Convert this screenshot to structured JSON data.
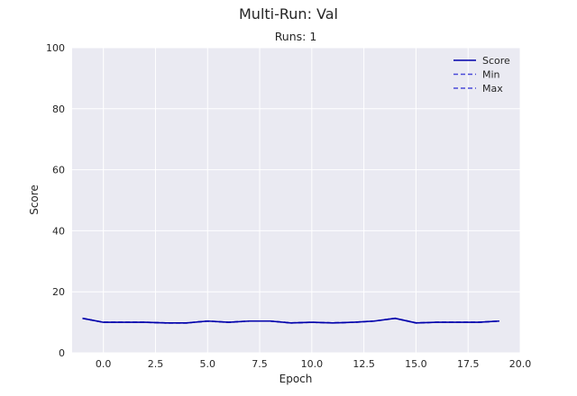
{
  "chart_data": {
    "type": "line",
    "title": "Multi-Run: Val",
    "subtitle": "Runs: 1",
    "xlabel": "Epoch",
    "ylabel": "Score",
    "xlim": [
      -1.5,
      20.0
    ],
    "ylim": [
      0,
      100
    ],
    "x_ticks": [
      0.0,
      2.5,
      5.0,
      7.5,
      10.0,
      12.5,
      15.0,
      17.5,
      20.0
    ],
    "x_tick_labels": [
      "0.0",
      "2.5",
      "5.0",
      "7.5",
      "10.0",
      "12.5",
      "15.0",
      "17.5",
      "20.0"
    ],
    "y_ticks": [
      0,
      20,
      40,
      60,
      80,
      100
    ],
    "y_tick_labels": [
      "0",
      "20",
      "40",
      "60",
      "80",
      "100"
    ],
    "grid": true,
    "legend_position": "top-right",
    "x": [
      -1,
      0,
      1,
      2,
      3,
      4,
      5,
      6,
      7,
      8,
      9,
      10,
      11,
      12,
      13,
      14,
      15,
      16,
      17,
      18,
      19
    ],
    "series": [
      {
        "name": "Score",
        "style": "solid",
        "color": "#0000aa",
        "values": [
          11.3,
          10.0,
          10.0,
          10.0,
          9.8,
          9.8,
          10.4,
          10.0,
          10.4,
          10.4,
          9.8,
          10.0,
          9.8,
          10.0,
          10.4,
          11.3,
          9.8,
          10.0,
          10.0,
          10.0,
          10.4
        ]
      },
      {
        "name": "Min",
        "style": "dashed",
        "color": "#4a4ad8",
        "values": [
          11.3,
          10.0,
          10.0,
          10.0,
          9.8,
          9.8,
          10.4,
          10.0,
          10.4,
          10.4,
          9.8,
          10.0,
          9.8,
          10.0,
          10.4,
          11.3,
          9.8,
          10.0,
          10.0,
          10.0,
          10.4
        ]
      },
      {
        "name": "Max",
        "style": "dashed",
        "color": "#4a4ad8",
        "values": [
          11.3,
          10.0,
          10.0,
          10.0,
          9.8,
          9.8,
          10.4,
          10.0,
          10.4,
          10.4,
          9.8,
          10.0,
          9.8,
          10.0,
          10.4,
          11.3,
          9.8,
          10.0,
          10.0,
          10.0,
          10.4
        ]
      }
    ],
    "colors": {
      "plot_background": "#eaeaf2",
      "grid": "#ffffff"
    }
  }
}
